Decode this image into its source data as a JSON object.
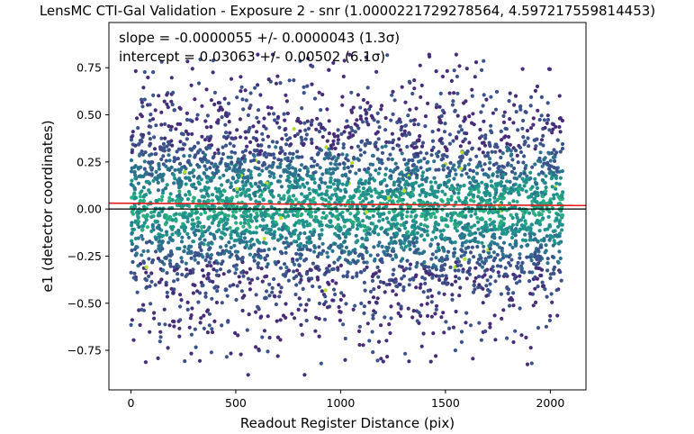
{
  "chart_data": {
    "type": "scatter",
    "title": "LensMC CTI-Gal Validation - Exposure 2 - snr (1.0000221729278564, 4.597217559814453)",
    "xlabel": "Readout Register Distance (pix)",
    "ylabel": "e1 (detector coordinates)",
    "xlim": [
      -105,
      2170
    ],
    "ylim": [
      -0.96,
      0.99
    ],
    "xticks": [
      0,
      500,
      1000,
      1500,
      2000
    ],
    "xtick_labels": [
      "0",
      "500",
      "1000",
      "1500",
      "2000"
    ],
    "yticks": [
      -0.75,
      -0.5,
      -0.25,
      0.0,
      0.25,
      0.5,
      0.75
    ],
    "ytick_labels": [
      "−0.75",
      "−0.50",
      "−0.25",
      "0.00",
      "0.25",
      "0.50",
      "0.75"
    ],
    "grid": false,
    "annotations": [
      "slope = -0.0000055 +/- 0.0000043 (1.3σ)",
      "intercept = 0.03063 +/- 0.00502 (6.1σ)"
    ],
    "fit_line": {
      "slope": -5.5e-06,
      "intercept": 0.03063,
      "color": "#e41a1c"
    },
    "zero_line": {
      "y": 0.0,
      "color": "#000000"
    },
    "points": {
      "x_range": [
        0,
        2060
      ],
      "y_spread": 0.28,
      "y_min": -0.88,
      "y_max": 0.82,
      "density_colors": [
        "#472c7a",
        "#3b528b",
        "#2c728e",
        "#21918c",
        "#28ae80",
        "#5ec962",
        "#b5de2b"
      ]
    }
  }
}
